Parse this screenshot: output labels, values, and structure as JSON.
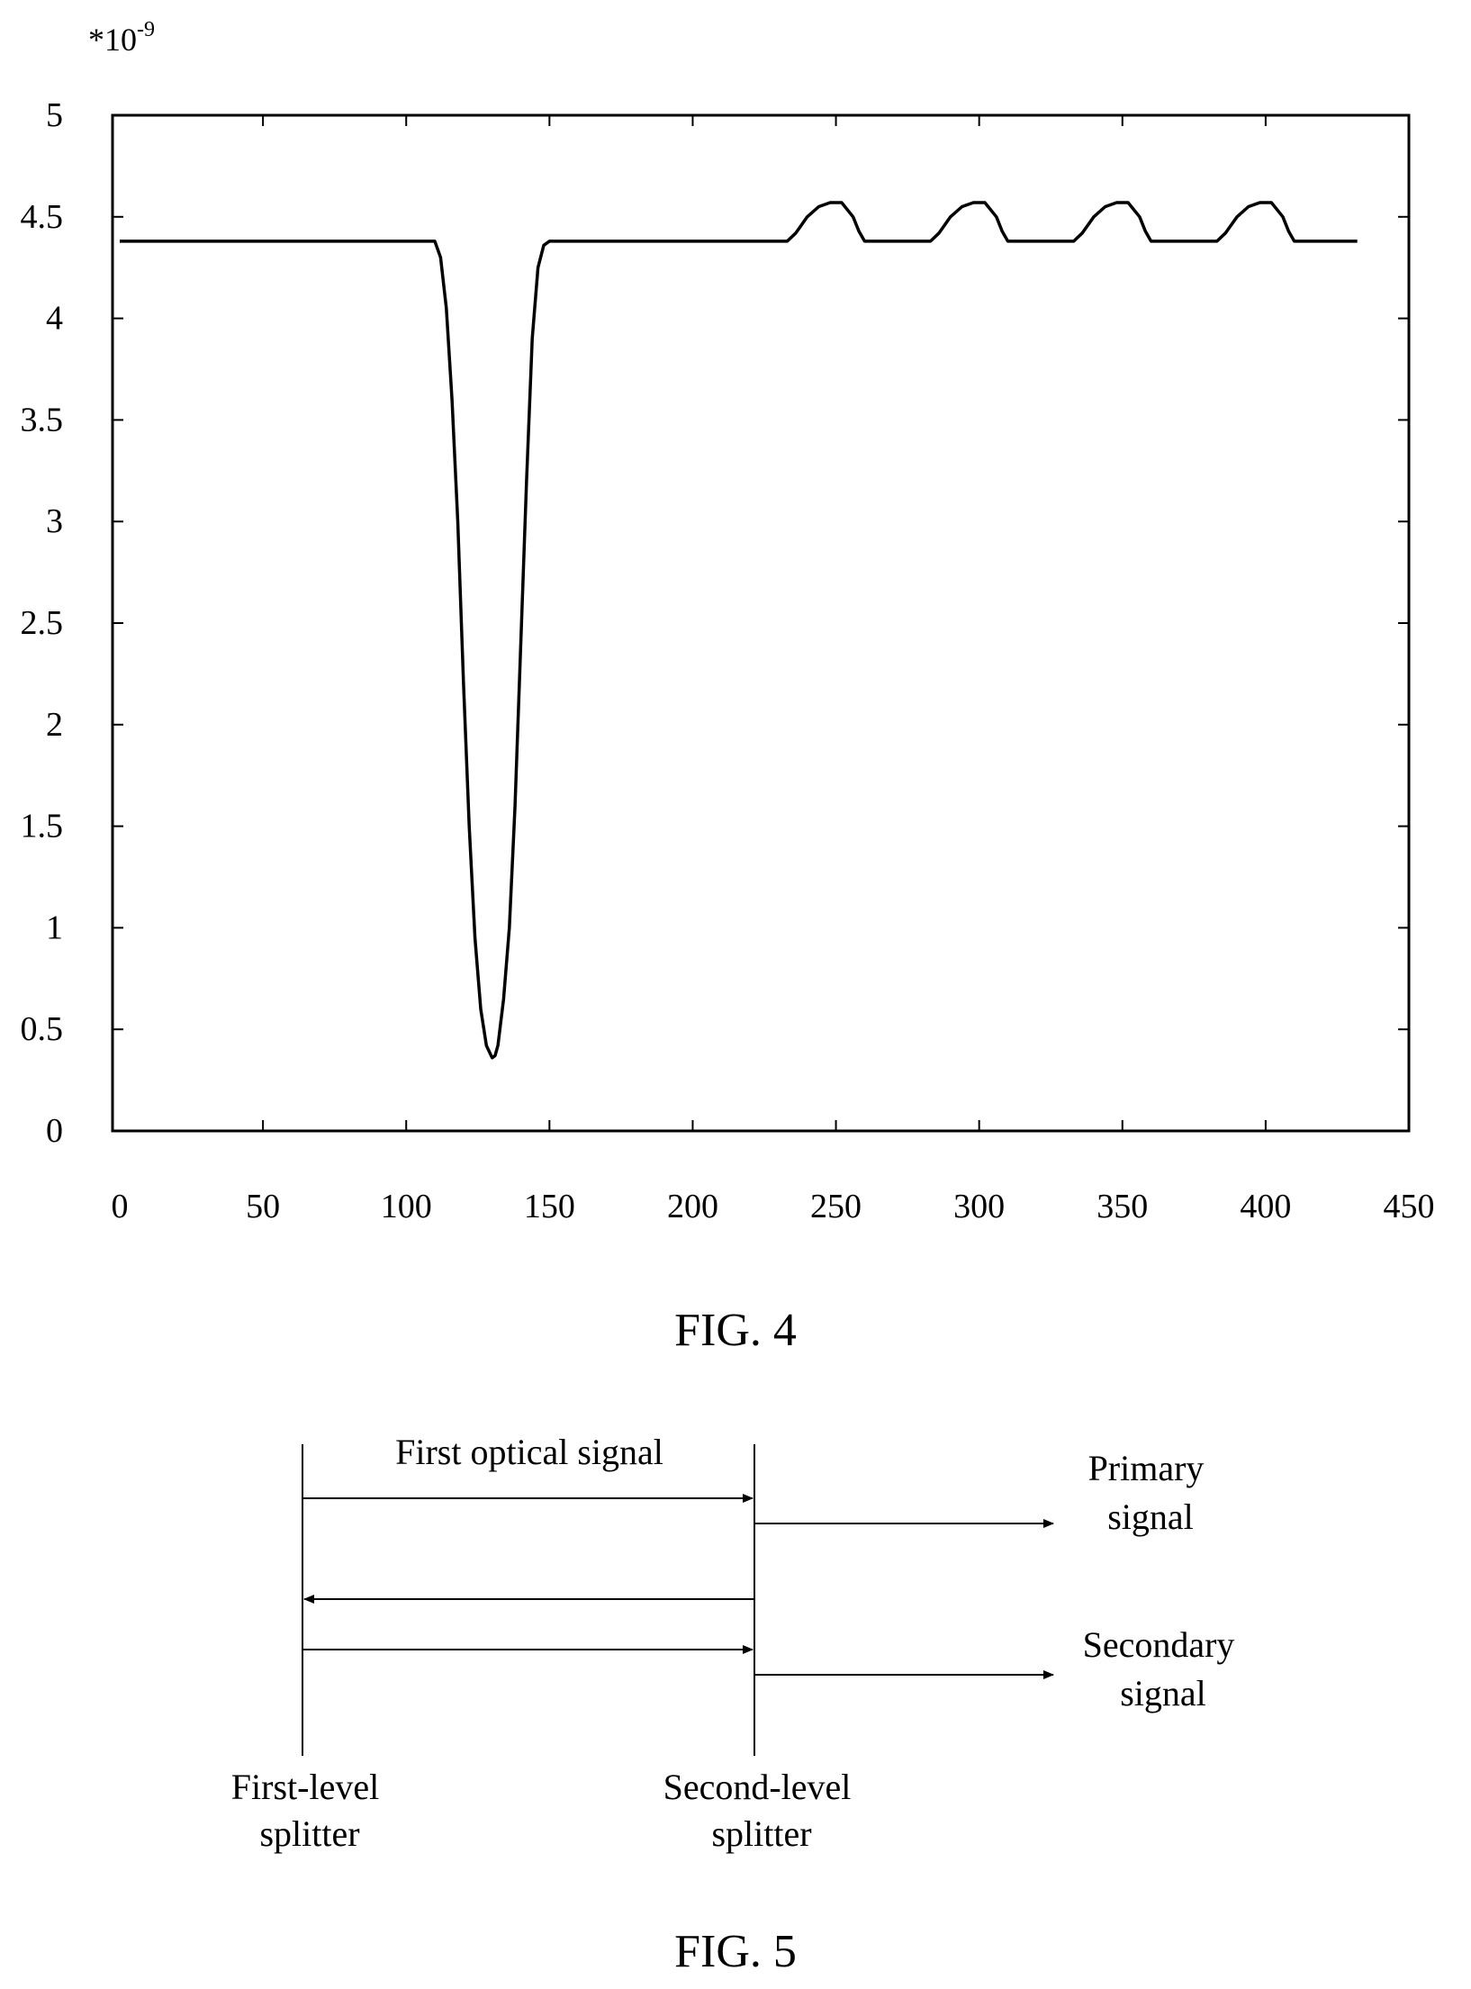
{
  "fig4": {
    "caption": "FIG. 4",
    "chart_data": {
      "type": "line",
      "y_multiplier_label": "*10",
      "y_multiplier_exponent": "-9",
      "xlim": [
        0,
        450
      ],
      "ylim": [
        0,
        5
      ],
      "x_ticks": [
        0,
        50,
        100,
        150,
        200,
        250,
        300,
        350,
        400,
        450
      ],
      "y_ticks": [
        0,
        0.5,
        1,
        1.5,
        2,
        2.5,
        3,
        3.5,
        4,
        4.5,
        5
      ],
      "x_tick_labels": [
        "0",
        "50",
        "100",
        "150",
        "200",
        "250",
        "300",
        "350",
        "400",
        "450"
      ],
      "y_tick_labels": [
        "0",
        "0.5",
        "1",
        "1.5",
        "2",
        "2.5",
        "3",
        "3.5",
        "4",
        "4.5",
        "5"
      ],
      "grid": false,
      "series": [
        {
          "x": [
            0,
            110,
            112,
            114,
            116,
            118,
            120,
            122,
            124,
            126,
            128,
            130,
            131,
            132,
            134,
            136,
            138,
            140,
            142,
            144,
            146,
            148,
            150,
            233,
            236,
            240,
            244,
            248,
            252,
            256,
            258,
            260,
            283,
            286,
            290,
            294,
            298,
            302,
            306,
            308,
            310,
            333,
            336,
            340,
            344,
            348,
            352,
            356,
            358,
            360,
            383,
            386,
            390,
            394,
            398,
            402,
            406,
            408,
            410,
            432
          ],
          "y": [
            4.38,
            4.38,
            4.3,
            4.05,
            3.6,
            3.0,
            2.2,
            1.5,
            0.95,
            0.6,
            0.42,
            0.36,
            0.37,
            0.42,
            0.65,
            1.0,
            1.6,
            2.4,
            3.2,
            3.9,
            4.25,
            4.36,
            4.38,
            4.38,
            4.42,
            4.5,
            4.55,
            4.57,
            4.57,
            4.5,
            4.43,
            4.38,
            4.38,
            4.42,
            4.5,
            4.55,
            4.57,
            4.57,
            4.5,
            4.43,
            4.38,
            4.38,
            4.42,
            4.5,
            4.55,
            4.57,
            4.57,
            4.5,
            4.43,
            4.38,
            4.38,
            4.42,
            4.5,
            4.55,
            4.57,
            4.57,
            4.5,
            4.43,
            4.38,
            4.38
          ]
        }
      ]
    }
  },
  "fig5": {
    "caption": "FIG. 5",
    "first_optical_signal_label": "First optical signal",
    "primary_signal_line1": "Primary",
    "primary_signal_line2": "signal",
    "secondary_signal_line1": "Secondary",
    "secondary_signal_line2": "signal",
    "first_level_splitter_line1": "First-level",
    "first_level_splitter_line2": "splitter",
    "second_level_splitter_line1": "Second-level",
    "second_level_splitter_line2": "splitter"
  }
}
